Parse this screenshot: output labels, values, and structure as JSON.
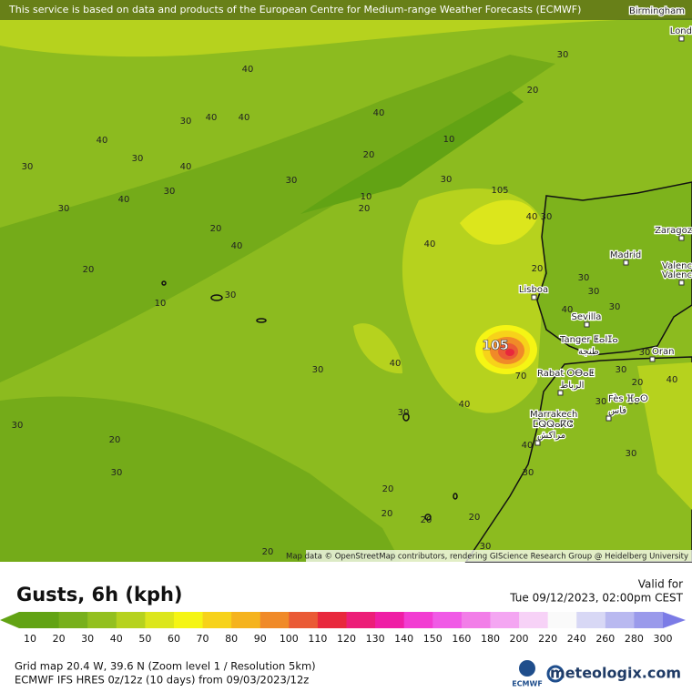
{
  "banner": "This service is based on data and products of the European Centre for Medium-range Weather Forecasts (ECMWF)",
  "attribution": "Map data © OpenStreetMap contributors, rendering GIScience Research Group @ Heidelberg University",
  "cities": [
    "Birmingham",
    "Lond",
    "Zaragoz",
    "Madrid",
    "Valenc",
    "Valenc",
    "Lisboa",
    "Sevilla",
    "Tanger ⵟⴰⵏⵊⴰ",
    "طنجة",
    "Oran",
    "Rabat ⵔⴱⴰⵟ",
    "الرباط",
    "Fès ⴼⴰⵙ",
    "فاس",
    "Marrakech",
    "ⵎⵕⵕⴰⴽⵛ",
    "مراكش"
  ],
  "contour_labels": [
    40,
    30,
    20,
    40,
    30,
    40,
    40,
    40,
    30,
    40,
    20,
    10,
    30,
    30,
    30,
    30,
    40,
    10,
    20,
    30,
    105,
    20,
    40,
    40,
    40,
    30,
    20,
    30,
    10,
    20,
    30,
    30,
    40,
    30,
    30,
    40,
    70,
    40,
    30,
    30,
    20,
    40,
    30,
    30,
    20,
    30,
    40,
    30,
    30,
    20,
    20,
    20,
    30,
    20,
    30,
    30,
    20
  ],
  "storm_label": 105,
  "legend": {
    "title": "Gusts, 6h (kph)",
    "values": [
      10,
      20,
      30,
      40,
      50,
      60,
      70,
      80,
      90,
      100,
      110,
      120,
      130,
      140,
      150,
      160,
      180,
      200,
      220,
      240,
      260,
      280,
      300
    ],
    "colors": [
      "#62a314",
      "#78b01c",
      "#93c01f",
      "#b6d21e",
      "#dce61c",
      "#f5f514",
      "#f7d21a",
      "#f5b31e",
      "#f08a28",
      "#ea5a35",
      "#e8283c",
      "#ec1e78",
      "#ef1ea5",
      "#f23cd2",
      "#f05ae6",
      "#f27ee8",
      "#f4a6f2",
      "#f7d2f7",
      "#fafafa",
      "#d8d8f5",
      "#b9b9f0",
      "#9a9aeb",
      "#7b7be6"
    ]
  },
  "valid": {
    "label": "Valid for",
    "time": "Tue 09/12/2023, 02:00pm CEST"
  },
  "footer": {
    "grid": "Grid map 20.4 W, 39.6 N (Zoom level 1 / Resolution 5km)",
    "model": "ECMWF IFS HRES 0z/12z (10 days) from 09/03/2023/12z",
    "ecmwf": "ECMWF",
    "brand": "meteologix.com"
  }
}
